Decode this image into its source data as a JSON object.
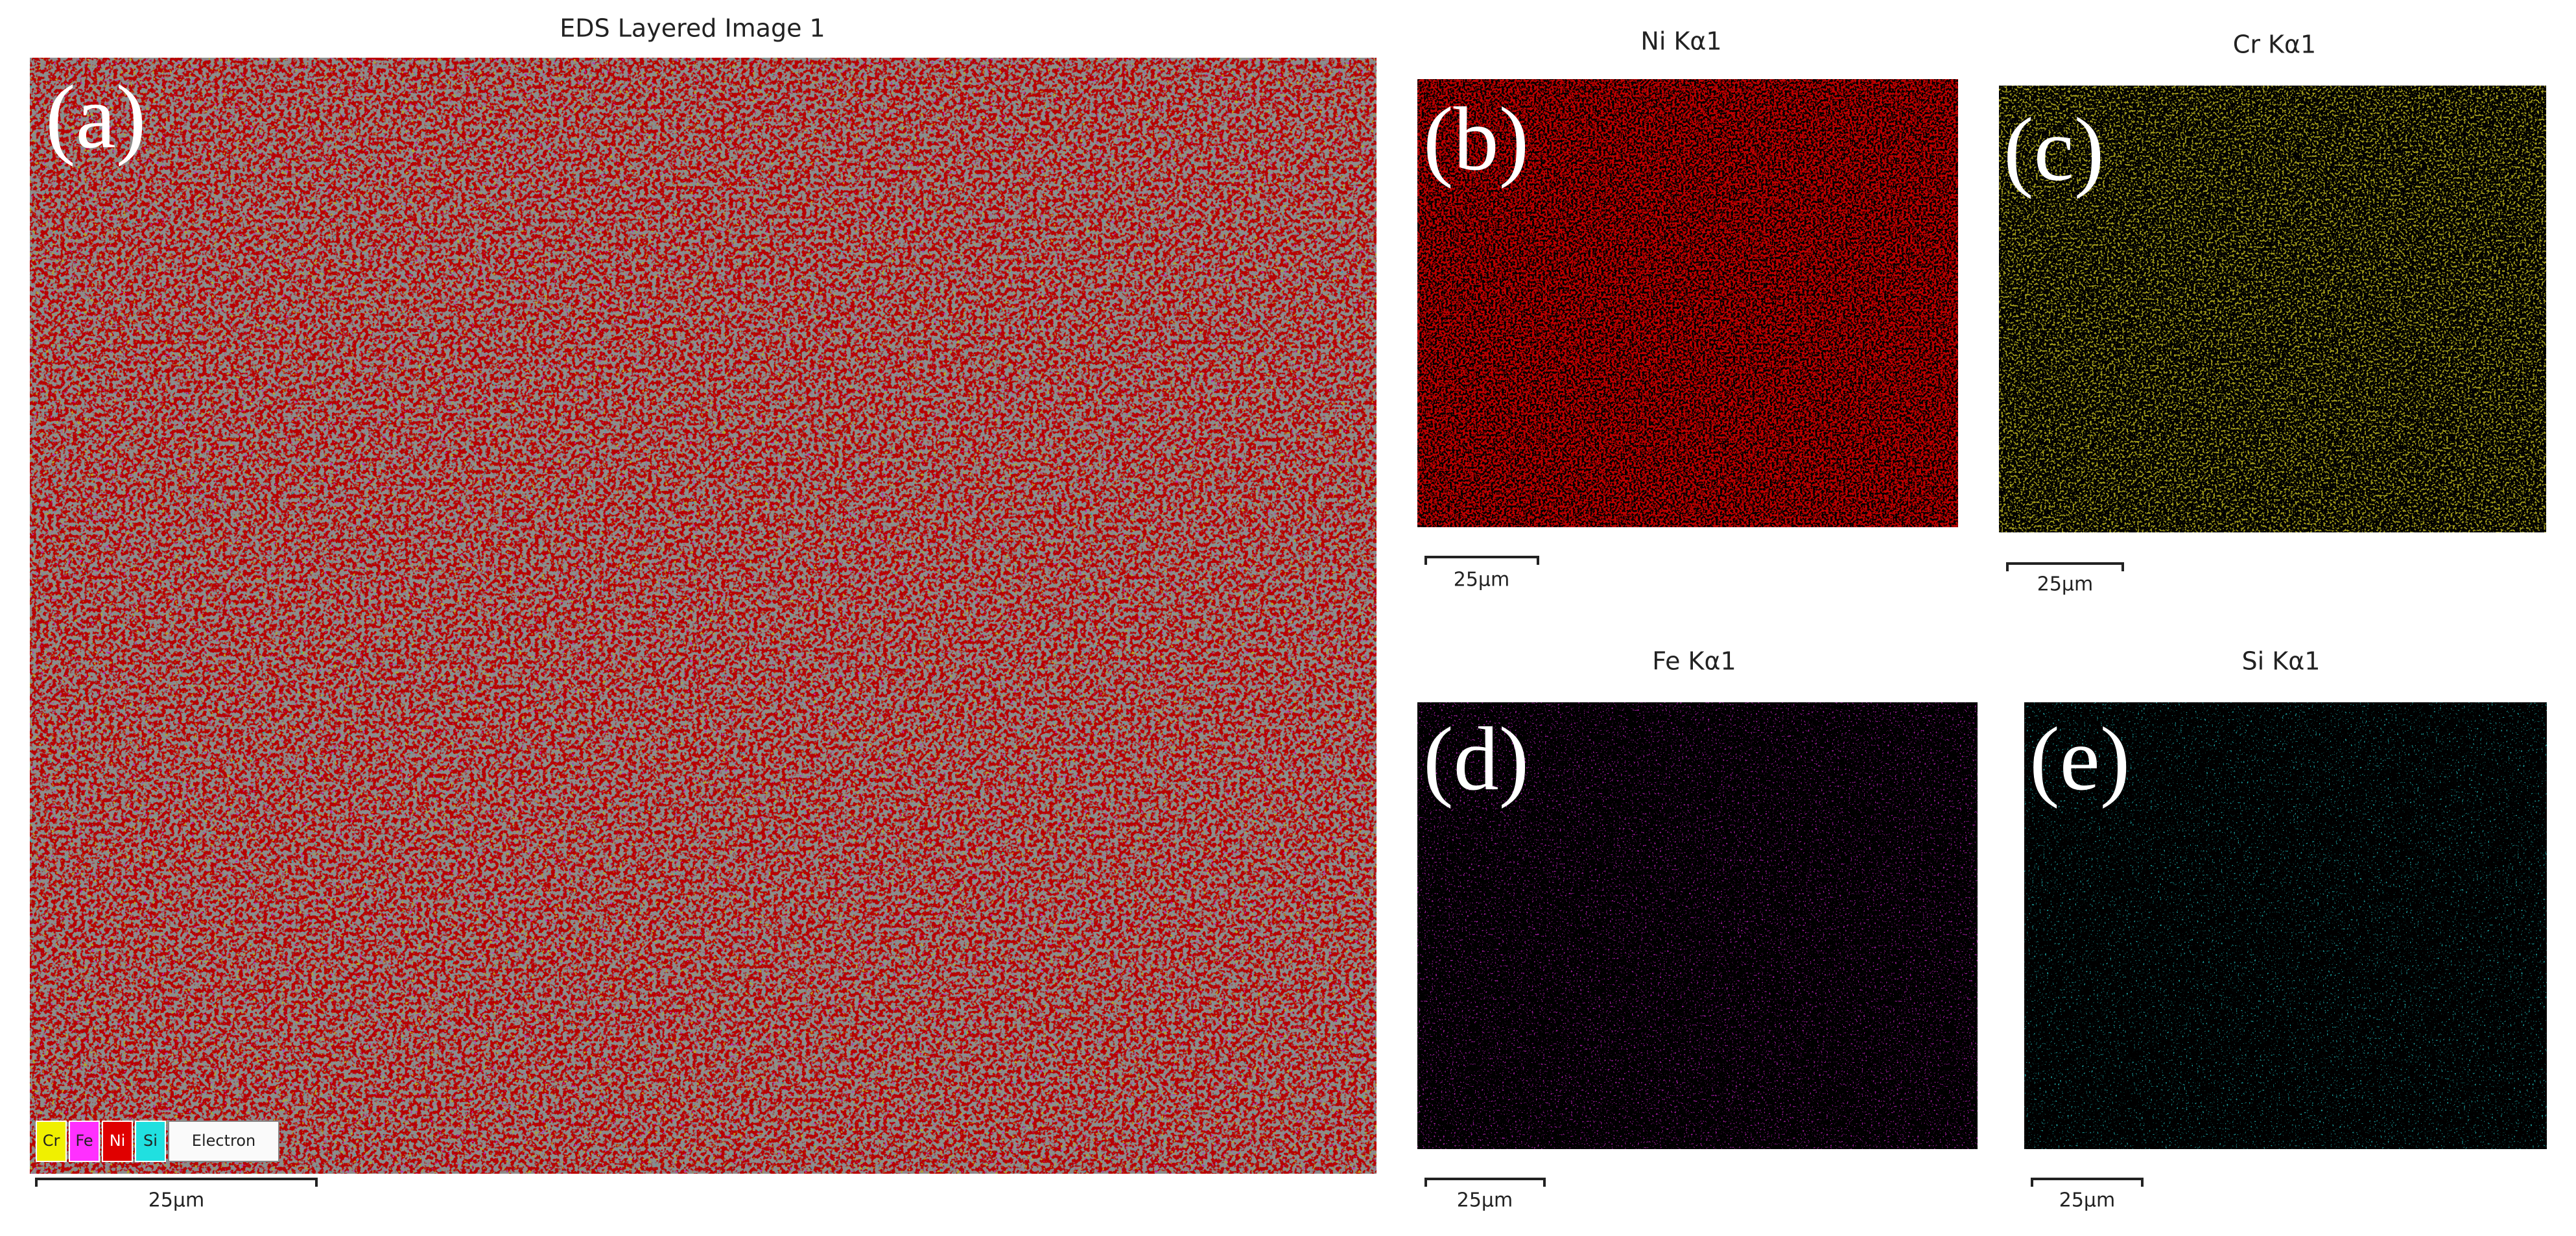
{
  "panels": [
    {
      "label": "(a)",
      "title": "EDS Layered Image 1",
      "scale_bar": "25µm",
      "legend": [
        "Cr",
        "Fe",
        "Ni",
        "Si",
        "Electron"
      ]
    },
    {
      "label": "(b)",
      "title": "Ni Kα1",
      "scale_bar": "25µm"
    },
    {
      "label": "(c)",
      "title": "Cr Kα1",
      "scale_bar": "25µm"
    },
    {
      "label": "(d)",
      "title": "Fe Kα1",
      "scale_bar": "25µm"
    },
    {
      "label": "(e)",
      "title": "Si Kα1",
      "scale_bar": "25µm"
    }
  ]
}
